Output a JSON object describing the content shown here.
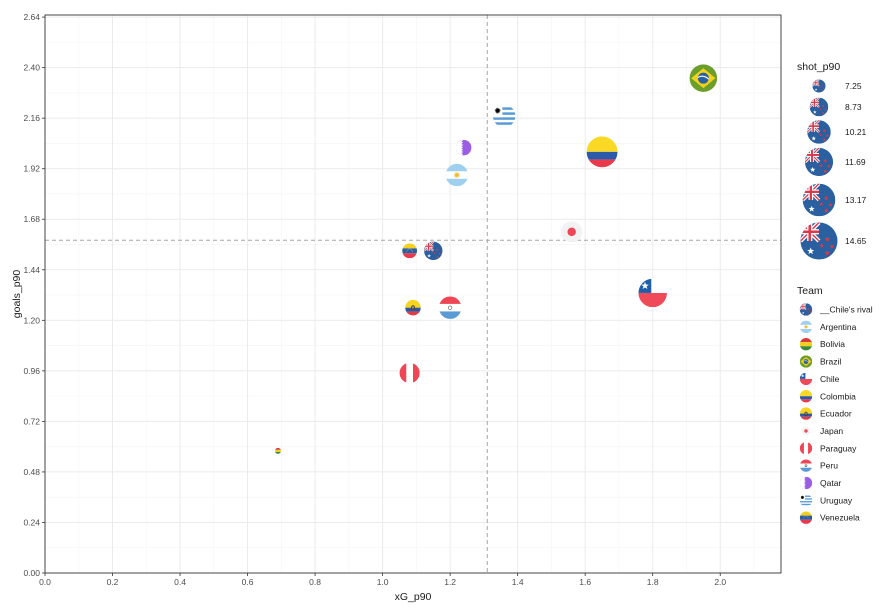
{
  "chart_data": {
    "type": "scatter",
    "title": "",
    "xlabel": "xG_p90",
    "ylabel": "goals_p90",
    "xlim": [
      0,
      2.18
    ],
    "ylim": [
      0,
      2.65
    ],
    "x_ticks": [
      "0.0",
      "0.2",
      "0.4",
      "0.6",
      "0.8",
      "1.0",
      "1.2",
      "1.4",
      "1.6",
      "1.8",
      "2.0"
    ],
    "y_ticks": [
      "0.00",
      "0.24",
      "0.48",
      "0.72",
      "0.96",
      "1.20",
      "1.44",
      "1.68",
      "1.92",
      "2.16",
      "2.40",
      "2.64"
    ],
    "reference_lines": {
      "x": 1.31,
      "y": 1.58
    },
    "grid": true,
    "legend_position": "right",
    "size_legend": {
      "title": "shot_p90",
      "values": [
        "7.25",
        "8.73",
        "10.21",
        "11.69",
        "13.17",
        "14.65"
      ]
    },
    "team_legend": {
      "title": "Team",
      "entries": [
        "__Chile's rival",
        "Argentina",
        "Bolivia",
        "Brazil",
        "Chile",
        "Colombia",
        "Ecuador",
        "Japan",
        "Paraguay",
        "Peru",
        "Qatar",
        "Uruguay",
        "Venezuela"
      ]
    },
    "points": [
      {
        "team": "Brazil",
        "x": 1.95,
        "y": 2.35,
        "shot_p90": 11.5
      },
      {
        "team": "Uruguay",
        "x": 1.36,
        "y": 2.17,
        "shot_p90": 9.9
      },
      {
        "team": "Qatar",
        "x": 1.24,
        "y": 2.02,
        "shot_p90": 7.9
      },
      {
        "team": "Colombia",
        "x": 1.65,
        "y": 2.0,
        "shot_p90": 12.6
      },
      {
        "team": "Argentina",
        "x": 1.22,
        "y": 1.89,
        "shot_p90": 9.9
      },
      {
        "team": "Japan",
        "x": 1.56,
        "y": 1.62,
        "shot_p90": 9.5
      },
      {
        "team": "Venezuela",
        "x": 1.08,
        "y": 1.53,
        "shot_p90": 7.7
      },
      {
        "team": "__Chile's rival",
        "x": 1.15,
        "y": 1.53,
        "shot_p90": 8.7
      },
      {
        "team": "Chile",
        "x": 1.8,
        "y": 1.33,
        "shot_p90": 11.8
      },
      {
        "team": "Ecuador",
        "x": 1.09,
        "y": 1.26,
        "shot_p90": 7.9
      },
      {
        "team": "Peru",
        "x": 1.2,
        "y": 1.26,
        "shot_p90": 9.9
      },
      {
        "team": "Paraguay",
        "x": 1.08,
        "y": 0.95,
        "shot_p90": 9.2
      },
      {
        "team": "Bolivia",
        "x": 0.69,
        "y": 0.58,
        "shot_p90": 4.5
      }
    ]
  },
  "flag_colors": {
    "chile_red": "#ef4a5a",
    "chile_blue": "#1f5ea8",
    "rival_blue": "#2a5fa0",
    "rival_red": "#d83a4c",
    "argentina_blue": "#9fd0ef",
    "argentina_sun": "#f2b92a",
    "bolivia_red": "#d83a3a",
    "bolivia_yellow": "#f5d020",
    "bolivia_green": "#3a8a3a",
    "brazil_green": "#6b9e2a",
    "brazil_yellow": "#f4d21a",
    "brazil_blue": "#2a5fa0",
    "colombia_yellow": "#f9d923",
    "colombia_blue": "#2b5aa8",
    "colombia_red": "#e8394d",
    "ecuador_yellow": "#f7d51e",
    "ecuador_blue": "#2c56a6",
    "ecuador_red": "#e03a44",
    "japan_bg": "#f2f2f2",
    "japan_red": "#ef4555",
    "paraguay_red": "#ef4555",
    "peru_red": "#ef4555",
    "peru_blue": "#5a9bd5",
    "qatar_purple": "#9b5de5",
    "uruguay_blue": "#5a9bd5",
    "venezuela_yellow": "#f5d020",
    "venezuela_blue": "#2a5fa0",
    "venezuela_red": "#e8394d",
    "panel_bg": "#ffffff",
    "grid_major": "#ebebeb",
    "grid_minor": "#f5f5f5",
    "ref_line": "#a6a6a6"
  }
}
